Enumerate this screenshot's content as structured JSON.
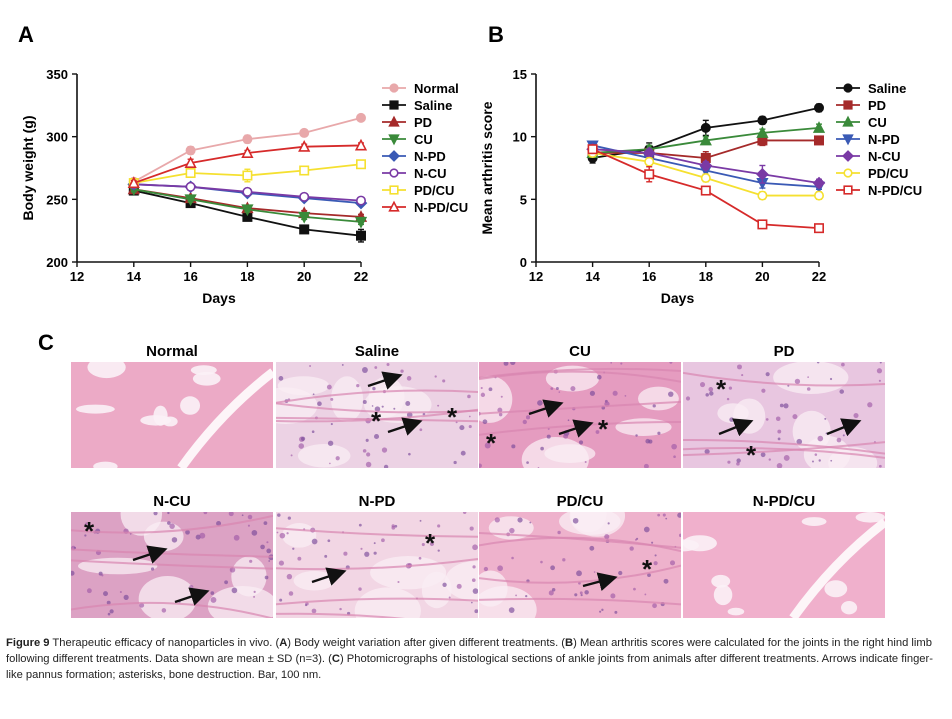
{
  "panel_labels": {
    "a": "A",
    "b": "B",
    "c": "C"
  },
  "chart_data": [
    {
      "type": "line",
      "panel": "A",
      "xlabel": "Days",
      "ylabel": "Body weight (g)",
      "xlim": [
        12,
        22
      ],
      "ylim": [
        200,
        350
      ],
      "xticks": [
        12,
        14,
        16,
        18,
        20,
        22
      ],
      "yticks": [
        200,
        250,
        300,
        350
      ],
      "x": [
        14,
        16,
        18,
        20,
        22
      ],
      "legend_position": "right",
      "series": [
        {
          "name": "Normal",
          "color": "#e8a8aa",
          "marker": "circle",
          "filled": true,
          "values": [
            264,
            289,
            298,
            303,
            315
          ],
          "err": [
            2,
            3,
            3,
            2,
            2
          ]
        },
        {
          "name": "Saline",
          "color": "#111111",
          "marker": "square",
          "filled": true,
          "values": [
            257,
            247,
            236,
            226,
            221
          ],
          "err": [
            2,
            2,
            2,
            2,
            5
          ]
        },
        {
          "name": "PD",
          "color": "#a52a2a",
          "marker": "triangle",
          "filled": true,
          "values": [
            258,
            251,
            243,
            239,
            236
          ],
          "err": [
            2,
            2,
            2,
            2,
            2
          ]
        },
        {
          "name": "CU",
          "color": "#3a8a3a",
          "marker": "triangle-down",
          "filled": true,
          "values": [
            258,
            250,
            242,
            236,
            232
          ],
          "err": [
            2,
            2,
            2,
            2,
            2
          ]
        },
        {
          "name": "N-PD",
          "color": "#3a5ab5",
          "marker": "diamond",
          "filled": true,
          "values": [
            262,
            260,
            255,
            251,
            247
          ],
          "err": [
            2,
            2,
            2,
            2,
            2
          ]
        },
        {
          "name": "N-CU",
          "color": "#7a3aa5",
          "marker": "circle",
          "filled": false,
          "values": [
            262,
            260,
            256,
            252,
            249
          ],
          "err": [
            2,
            2,
            2,
            2,
            2
          ]
        },
        {
          "name": "PD/CU",
          "color": "#f5e030",
          "marker": "square",
          "filled": false,
          "values": [
            263,
            271,
            269,
            273,
            278
          ],
          "err": [
            2,
            3,
            5,
            2,
            2
          ]
        },
        {
          "name": "N-PD/CU",
          "color": "#d62a2a",
          "marker": "triangle",
          "filled": false,
          "values": [
            263,
            279,
            287,
            292,
            293
          ],
          "err": [
            2,
            3,
            2,
            2,
            2
          ]
        }
      ]
    },
    {
      "type": "line",
      "panel": "B",
      "xlabel": "Days",
      "ylabel": "Mean arthritis score",
      "xlim": [
        12,
        22
      ],
      "ylim": [
        0,
        15
      ],
      "xticks": [
        12,
        14,
        16,
        18,
        20,
        22
      ],
      "yticks": [
        0,
        5,
        10,
        15
      ],
      "x": [
        14,
        16,
        18,
        20,
        22
      ],
      "legend_position": "right",
      "series": [
        {
          "name": "Saline",
          "color": "#111111",
          "marker": "circle",
          "filled": true,
          "values": [
            8.3,
            9.0,
            10.7,
            11.3,
            12.3
          ],
          "err": [
            0.4,
            0.5,
            0.6,
            0.3,
            0.3
          ]
        },
        {
          "name": "PD",
          "color": "#a52a2a",
          "marker": "square",
          "filled": true,
          "values": [
            8.7,
            8.7,
            8.3,
            9.7,
            9.7
          ],
          "err": [
            0.3,
            0.3,
            0.5,
            0.4,
            0.3
          ]
        },
        {
          "name": "CU",
          "color": "#3a8a3a",
          "marker": "triangle",
          "filled": true,
          "values": [
            8.7,
            9.0,
            9.7,
            10.3,
            10.7
          ],
          "err": [
            0.3,
            0.3,
            0.3,
            0.3,
            0.3
          ]
        },
        {
          "name": "N-PD",
          "color": "#3a5ab5",
          "marker": "triangle-down",
          "filled": true,
          "values": [
            9.3,
            8.3,
            7.3,
            6.3,
            6.0
          ],
          "err": [
            0.3,
            0.3,
            0.3,
            0.4,
            0.2
          ]
        },
        {
          "name": "N-CU",
          "color": "#7a3aa5",
          "marker": "diamond",
          "filled": true,
          "values": [
            9.0,
            8.7,
            7.7,
            7.0,
            6.3
          ],
          "err": [
            0.3,
            0.3,
            0.3,
            0.7,
            0.3
          ]
        },
        {
          "name": "PD/CU",
          "color": "#f5e030",
          "marker": "circle",
          "filled": false,
          "values": [
            8.7,
            8.0,
            6.7,
            5.3,
            5.3
          ],
          "err": [
            0.3,
            0.3,
            0.3,
            0.3,
            0.3
          ]
        },
        {
          "name": "N-PD/CU",
          "color": "#d62a2a",
          "marker": "square",
          "filled": false,
          "values": [
            9.0,
            7.0,
            5.7,
            3.0,
            2.7
          ],
          "err": [
            0.3,
            0.6,
            0.3,
            0.3,
            0.3
          ]
        }
      ]
    }
  ],
  "micrographs": [
    {
      "label": "Normal",
      "base": "#ecaac6",
      "tissue": "bone"
    },
    {
      "label": "Saline",
      "base": "#ecd2e4",
      "tissue": "pannus"
    },
    {
      "label": "CU",
      "base": "#e59cc0",
      "tissue": "pannus"
    },
    {
      "label": "PD",
      "base": "#e8c6e0",
      "tissue": "pannus"
    },
    {
      "label": "N-CU",
      "base": "#dca2c4",
      "tissue": "pannus"
    },
    {
      "label": "N-PD",
      "base": "#f2d6e4",
      "tissue": "pannus"
    },
    {
      "label": "PD/CU",
      "base": "#eeb2cc",
      "tissue": "pannus"
    },
    {
      "label": "N-PD/CU",
      "base": "#f0b0cc",
      "tissue": "bone"
    }
  ],
  "caption": {
    "figure_label": "Figure 9",
    "intro": "Therapeutic efficacy of nanoparticles in vivo. (",
    "a_letter": "A",
    "a_text": ") Body weight variation after given different treatments. (",
    "b_letter": "B",
    "b_text": ") Mean arthritis scores were calculated for the joints in the right hind limb following different treatments. Data shown are mean ± SD (n=3). (",
    "c_letter": "C",
    "c_text": ") Photomicrographs of histological sections of ankle joints from animals after different treatments. Arrows indicate finger-like pannus formation; asterisks, bone destruction. Bar, 100 nm."
  }
}
